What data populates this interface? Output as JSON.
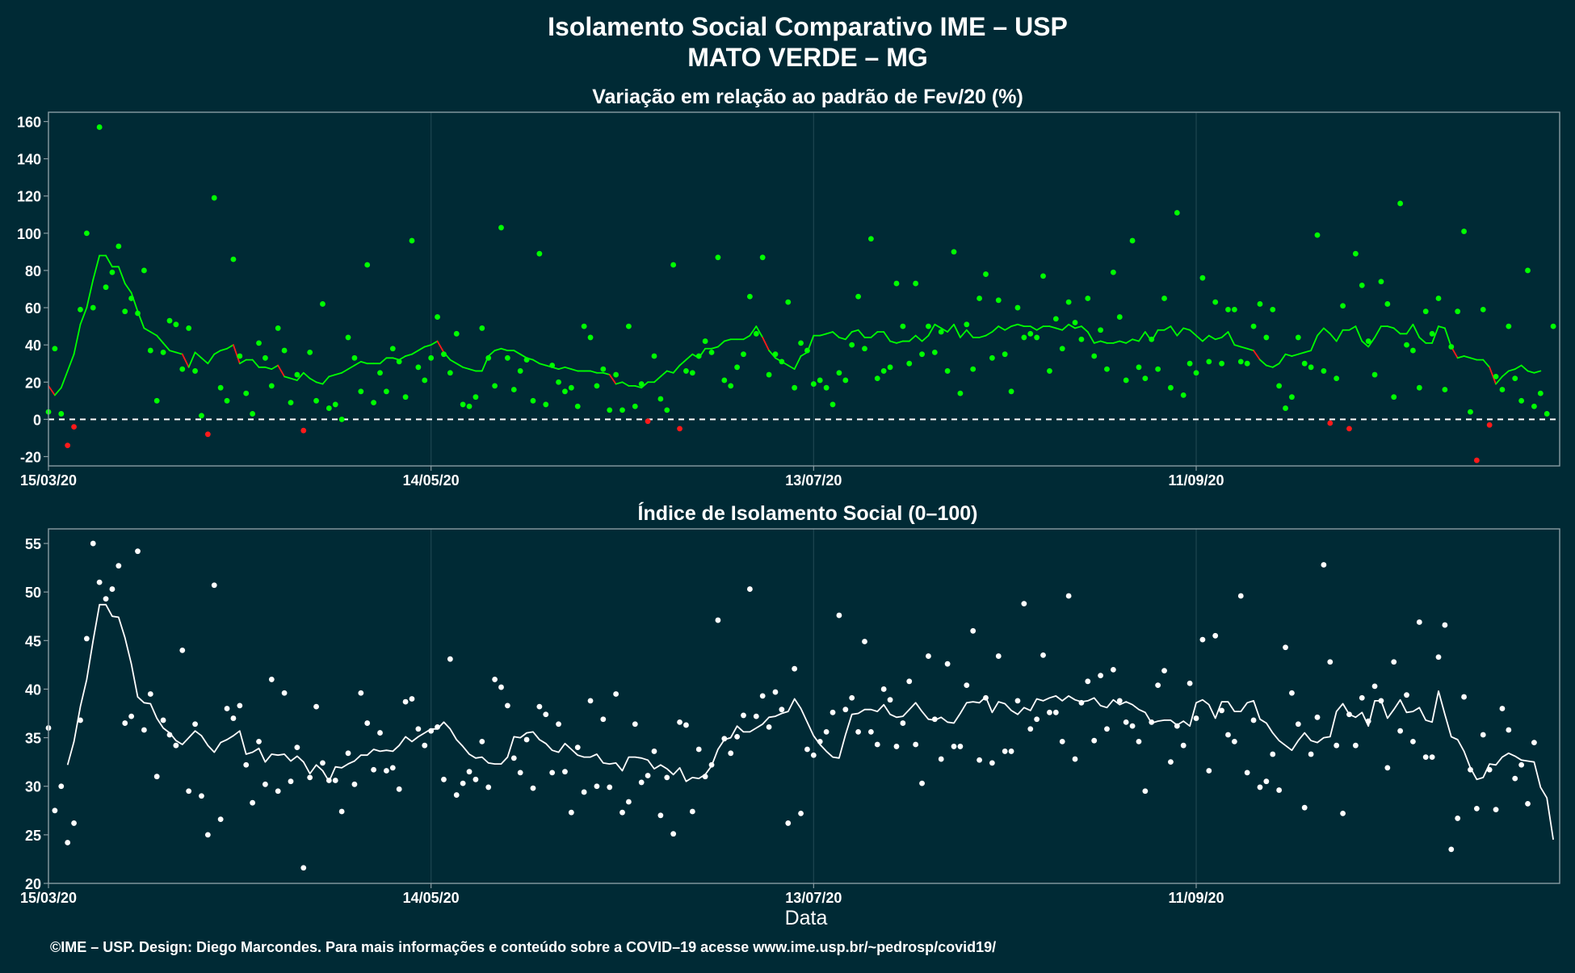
{
  "title": "Isolamento Social Comparativo IME – USP",
  "subtitle": "MATO VERDE – MG",
  "footer": "©IME – USP. Design: Diego Marcondes. Para mais informações e conteúdo sobre a COVID–19 acesse www.ime.usp.br/~pedrosp/covid19/",
  "x_axis_label": "Data",
  "colors": {
    "background": "#002a35",
    "panel_border": "#8a9ca3",
    "grid": "#1d4550",
    "positive": "#00ff00",
    "negative": "#ff1a1a",
    "index_series": "#ffffff"
  },
  "chart_data": [
    {
      "type": "scatter",
      "title": "Variação em relação ao padrão de Fev/20 (%)",
      "xlabel": "",
      "ylabel": "",
      "x_ticks": [
        "15/03/20",
        "14/05/20",
        "13/07/20",
        "11/09/20"
      ],
      "x_tick_day": [
        0,
        60,
        120,
        180
      ],
      "y_ticks": [
        -20,
        0,
        20,
        40,
        60,
        80,
        100,
        120,
        140,
        160
      ],
      "ylim": [
        -25,
        165
      ],
      "x_range_days": [
        0,
        237
      ],
      "reference_line": 0,
      "legend": "none",
      "grid": true,
      "series": [
        {
          "kind": "points",
          "values": [
            4,
            38,
            3,
            -14,
            -4,
            59,
            100,
            60,
            157,
            71,
            79,
            93,
            58,
            65,
            57,
            80,
            37,
            10,
            36,
            53,
            51,
            27,
            49,
            26,
            2,
            -8,
            119,
            17,
            10,
            86,
            34,
            14,
            3,
            41,
            33,
            18,
            49,
            37,
            9,
            24,
            -6,
            36,
            10,
            62,
            6,
            8,
            0,
            44,
            33,
            15,
            83,
            9,
            25,
            15,
            38,
            31,
            12,
            96,
            28,
            21,
            33,
            55,
            35,
            25,
            46,
            8,
            7,
            12,
            49,
            33,
            18,
            103,
            33,
            16,
            26,
            32,
            10,
            89,
            8,
            29,
            20,
            15,
            17,
            7,
            50,
            44,
            18,
            27,
            5,
            24,
            5,
            50,
            7,
            19,
            -1,
            34,
            11,
            5,
            83,
            -5,
            26,
            25,
            34,
            42,
            36,
            87,
            21,
            18,
            28,
            35,
            66,
            46,
            87,
            24,
            35,
            31,
            63,
            17,
            41,
            37,
            19,
            21,
            17,
            8,
            25,
            21,
            40,
            66,
            38,
            97,
            22,
            26,
            28,
            73,
            50,
            30,
            73,
            35,
            50,
            36,
            47,
            26,
            90,
            14,
            51,
            27,
            65,
            78,
            33,
            64,
            35,
            15,
            60,
            44,
            46,
            44,
            77,
            26,
            54,
            38,
            63,
            52,
            43,
            65,
            34,
            48,
            27,
            79,
            55,
            21,
            96,
            28,
            22,
            43,
            27,
            65,
            17,
            111,
            13,
            30,
            25,
            76,
            31,
            63,
            30,
            59,
            59,
            31,
            30,
            50,
            62,
            44,
            59,
            18,
            6,
            12,
            44,
            30,
            28,
            99,
            26,
            -2,
            22,
            61,
            -5,
            89,
            72,
            42,
            24,
            74,
            62,
            12,
            116,
            40,
            37,
            17,
            58,
            46,
            65,
            16,
            39,
            58,
            101,
            4,
            -22,
            59,
            -3,
            23,
            16,
            50,
            22,
            10,
            80,
            7,
            14,
            3,
            50
          ]
        },
        {
          "kind": "moving_average",
          "values": [
            18,
            13,
            17,
            26,
            35,
            51,
            60,
            75,
            88,
            88,
            82,
            82,
            73,
            68,
            58,
            49,
            47,
            45,
            41,
            37,
            36,
            35,
            28,
            36,
            33,
            30,
            35,
            37,
            38,
            40,
            30,
            32,
            32,
            28,
            28,
            27,
            29,
            23,
            22,
            21,
            25,
            22,
            20,
            19,
            23,
            24,
            25,
            27,
            29,
            31,
            30,
            30,
            30,
            33,
            33,
            32,
            34,
            35,
            37,
            39,
            40,
            42,
            36,
            32,
            30,
            28,
            27,
            26,
            26,
            34,
            37,
            38,
            37,
            37,
            35,
            33,
            32,
            30,
            29,
            28,
            27,
            28,
            27,
            26,
            26,
            26,
            25,
            25,
            24,
            19,
            20,
            18,
            18,
            17,
            20,
            20,
            23,
            26,
            25,
            29,
            32,
            35,
            33,
            38,
            38,
            39,
            42,
            43,
            43,
            43,
            45,
            50,
            44,
            37,
            33,
            31,
            29,
            27,
            34,
            36,
            45,
            45,
            46,
            47,
            44,
            43,
            47,
            48,
            44,
            44,
            47,
            47,
            42,
            41,
            42,
            42,
            45,
            42,
            45,
            51,
            49,
            47,
            51,
            44,
            48,
            44,
            44,
            45,
            47,
            50,
            48,
            50,
            51,
            50,
            50,
            48,
            50,
            50,
            49,
            48,
            51,
            49,
            50,
            47,
            41,
            42,
            41,
            41,
            42,
            41,
            43,
            42,
            47,
            42,
            48,
            48,
            50,
            45,
            49,
            48,
            45,
            42,
            45,
            43,
            44,
            47,
            40,
            39,
            38,
            37,
            32,
            29,
            28,
            30,
            35,
            34,
            35,
            36,
            37,
            45,
            49,
            46,
            42,
            48,
            48,
            50,
            42,
            39,
            44,
            50,
            50,
            49,
            46,
            46,
            51,
            44,
            41,
            41,
            50,
            49,
            39,
            33,
            34,
            33,
            32,
            32,
            28,
            19,
            23,
            26,
            27,
            29,
            26,
            25,
            26
          ]
        }
      ]
    },
    {
      "type": "scatter",
      "title": "Índice de Isolamento Social (0–100)",
      "xlabel": "Data",
      "ylabel": "",
      "x_ticks": [
        "15/03/20",
        "14/05/20",
        "13/07/20",
        "11/09/20"
      ],
      "x_tick_day": [
        0,
        60,
        120,
        180
      ],
      "y_ticks": [
        20,
        25,
        30,
        35,
        40,
        45,
        50,
        55
      ],
      "ylim": [
        20,
        56.5
      ],
      "x_range_days": [
        0,
        237
      ],
      "legend": "none",
      "grid": true,
      "series": [
        {
          "kind": "points",
          "values": [
            36,
            27.5,
            30,
            24.2,
            26.2,
            36.8,
            45.2,
            55,
            51,
            49.3,
            50.3,
            52.7,
            36.5,
            37.2,
            54.2,
            35.8,
            39.5,
            31,
            36.8,
            35.3,
            34.2,
            44,
            29.5,
            36.4,
            29,
            25,
            50.7,
            26.6,
            38,
            37,
            38.3,
            32.2,
            28.3,
            34.6,
            30.2,
            41,
            29.5,
            39.6,
            30.5,
            34,
            21.6,
            30.9,
            38.2,
            32.4,
            30.6,
            30.6,
            27.4,
            33.4,
            30.2,
            39.6,
            36.5,
            31.7,
            35.5,
            31.6,
            31.9,
            29.7,
            38.7,
            39,
            35.9,
            34.2,
            35.7,
            36.1,
            30.7,
            43.1,
            29.1,
            30.3,
            31.5,
            30.7,
            34.6,
            29.9,
            41,
            40.2,
            38.3,
            32.9,
            31.4,
            34.8,
            29.8,
            38.2,
            37.4,
            31.4,
            36.4,
            31.5,
            27.3,
            34,
            29.4,
            38.8,
            30,
            36.9,
            29.9,
            39.5,
            27.3,
            28.4,
            36.4,
            30.4,
            31.1,
            33.6,
            27,
            30.9,
            25.1,
            36.6,
            36.3,
            27.4,
            33.8,
            31,
            32.2,
            47.1,
            34.9,
            33.4,
            35.1,
            37.3,
            50.3,
            37.2,
            39.3,
            36.1,
            39.7,
            37.9,
            26.2,
            42.1,
            27.2,
            33.8,
            33.2,
            34.6,
            35.6,
            37.6,
            47.6,
            37.9,
            39.1,
            35.6,
            44.9,
            35.6,
            34.3,
            40,
            38.9,
            34.1,
            36.5,
            40.8,
            34.3,
            30.3,
            43.4,
            36.9,
            32.8,
            42.6,
            34.1,
            34.1,
            40.4,
            46,
            32.7,
            39.1,
            32.4,
            43.4,
            33.6,
            33.6,
            38.8,
            48.8,
            35.9,
            36.9,
            43.5,
            37.6,
            37.6,
            34.6,
            49.6,
            32.8,
            38.6,
            40.8,
            34.7,
            41.4,
            35.9,
            42,
            38.8,
            36.6,
            36.2,
            34.6,
            29.5,
            36.6,
            40.4,
            41.9,
            32.5,
            36.2,
            34.2,
            40.6,
            37,
            45.1,
            31.6,
            45.5,
            37.8,
            35.3,
            34.6,
            49.6,
            31.4,
            36.8,
            29.9,
            30.5,
            33.3,
            29.6,
            44.3,
            39.6,
            36.4,
            27.8,
            33.3,
            37.1,
            52.8,
            42.8,
            34.2,
            27.2,
            37.4,
            34.2,
            39.1,
            36.7,
            40.3,
            38.8,
            31.9,
            42.8,
            35.7,
            39.4,
            34.6,
            46.9,
            33,
            33,
            43.3,
            46.6,
            23.5,
            26.7,
            39.2,
            31.7,
            27.7,
            35.3,
            31.7,
            27.6,
            38,
            35.8,
            30.8,
            32.2,
            28.2,
            34.5
          ]
        },
        {
          "kind": "moving_average",
          "values": [
            32.2,
            34.6,
            38.2,
            41,
            45,
            48.7,
            48.7,
            47.5,
            47.4,
            45.3,
            42.6,
            39.2,
            38.6,
            38.5,
            37,
            36,
            35.5,
            34.7,
            34.3,
            35,
            35.7,
            35.2,
            34.2,
            33.5,
            34.5,
            34.8,
            35.2,
            35.7,
            33.3,
            33.5,
            33.9,
            32.5,
            33.3,
            33.2,
            33.3,
            32.6,
            33.1,
            32.5,
            31.3,
            32.2,
            31.6,
            30.5,
            32,
            31.9,
            32.3,
            32.6,
            33.2,
            33.2,
            33.8,
            33.6,
            33.7,
            33.6,
            34.2,
            35.1,
            34.6,
            35.1,
            35.5,
            35.9,
            35.9,
            36.6,
            35.9,
            34.8,
            34.1,
            33.3,
            32.9,
            33,
            32.4,
            32.3,
            32.3,
            33,
            35.1,
            35,
            35.5,
            35.6,
            34.8,
            34.4,
            33.7,
            33.5,
            34.4,
            33.8,
            33.2,
            33,
            33,
            33.3,
            32.4,
            32.3,
            32.4,
            31.6,
            33,
            33,
            32.9,
            32.7,
            31.8,
            32.2,
            31.8,
            31.2,
            31.9,
            30.5,
            30.9,
            30.8,
            31.2,
            32.1,
            33.8,
            34.8,
            35,
            36.2,
            35.6,
            35.6,
            36,
            36.4,
            37.1,
            37.2,
            37.5,
            37.7,
            39,
            38,
            36.6,
            35.2,
            34.3,
            33.6,
            33,
            32.9,
            35.3,
            37.4,
            37.5,
            37.9,
            37.9,
            37.7,
            38.4,
            37.4,
            37.1,
            37.2,
            37.9,
            38.6,
            37.7,
            36.9,
            36.8,
            37.1,
            36.6,
            36.5,
            37.5,
            38.6,
            38.7,
            38.6,
            39.2,
            37.6,
            38.7,
            38.5,
            37.8,
            37.4,
            38.1,
            37.8,
            39,
            38.8,
            39.1,
            39.3,
            38.8,
            39.3,
            38.9,
            38.7,
            38.8,
            39.1,
            38.3,
            38.1,
            38.9,
            38.4,
            38.7,
            38.4,
            37.9,
            37.6,
            36.5,
            36.7,
            36.8,
            36.8,
            36.3,
            36.7,
            36.2,
            38.6,
            38.9,
            38.4,
            37,
            38.7,
            38.7,
            37.7,
            37.7,
            38.6,
            38.8,
            36.9,
            36.5,
            35.5,
            34.7,
            34.2,
            33.7,
            34.7,
            35.5,
            34.7,
            34.5,
            35,
            35.1,
            37.7,
            38.5,
            37.4,
            37.1,
            37.6,
            36.2,
            38.8,
            38.8,
            37,
            37.9,
            38.9,
            37.6,
            37.7,
            38.1,
            36.8,
            36.6,
            39.8,
            37.4,
            35.1,
            34.8,
            33.6,
            31.9,
            30.7,
            30.9,
            32.3,
            32.2,
            33,
            33.4,
            33.1,
            32.7,
            32.6,
            32.5,
            29.9,
            28.8,
            24.5
          ]
        }
      ]
    }
  ]
}
